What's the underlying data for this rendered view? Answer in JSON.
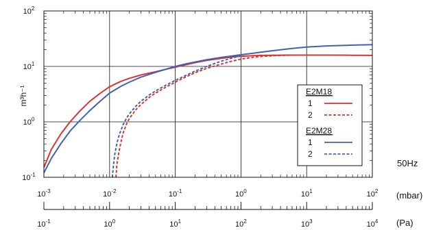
{
  "chart_data": {
    "type": "line",
    "ylabel": "m³h⁻¹",
    "y_scale": "log",
    "ylim": [
      0.1,
      100
    ],
    "y_ticks": [
      {
        "value": 0.1,
        "base": "10",
        "exp": "-1"
      },
      {
        "value": 1,
        "base": "10",
        "exp": "0"
      },
      {
        "value": 10,
        "base": "10",
        "exp": "1"
      },
      {
        "value": 100,
        "base": "10",
        "exp": "2"
      }
    ],
    "x_scale": "log",
    "xlim": [
      0.001,
      100
    ],
    "x_unit": "(mbar)",
    "x_ticks": [
      {
        "value": 0.001,
        "base": "10",
        "exp": "-3"
      },
      {
        "value": 0.01,
        "base": "10",
        "exp": "-2"
      },
      {
        "value": 0.1,
        "base": "10",
        "exp": "-1"
      },
      {
        "value": 1,
        "base": "10",
        "exp": "0"
      },
      {
        "value": 10,
        "base": "10",
        "exp": "1"
      },
      {
        "value": 100,
        "base": "10",
        "exp": "2"
      }
    ],
    "secondary_x_unit": "(Pa)",
    "secondary_x_ticks": [
      {
        "value": 0.1,
        "base": "10",
        "exp": "-1"
      },
      {
        "value": 1,
        "base": "10",
        "exp": "0"
      },
      {
        "value": 10,
        "base": "10",
        "exp": "1"
      },
      {
        "value": 100,
        "base": "10",
        "exp": "2"
      },
      {
        "value": 1000,
        "base": "10",
        "exp": "3"
      },
      {
        "value": 10000,
        "base": "10",
        "exp": "4"
      }
    ],
    "frequency_label": "50Hz",
    "grid": true,
    "legend": {
      "placement": "right",
      "groups": [
        {
          "title": "E2M18",
          "entries": [
            {
              "label": "1",
              "series": 0
            },
            {
              "label": "2",
              "series": 1
            }
          ]
        },
        {
          "title": "E2M28",
          "entries": [
            {
              "label": "1",
              "series": 2
            },
            {
              "label": "2",
              "series": 3
            }
          ]
        }
      ]
    },
    "series": [
      {
        "color": "#e03030",
        "dash": "solid",
        "x": [
          0.001,
          0.0013,
          0.0018,
          0.0025,
          0.0035,
          0.005,
          0.007,
          0.01,
          0.015,
          0.02,
          0.03,
          0.05,
          0.07,
          0.1,
          0.15,
          0.2,
          0.3,
          0.5,
          0.7,
          1,
          1.5,
          2,
          3,
          5,
          7,
          10,
          20,
          50,
          100
        ],
        "y": [
          0.15,
          0.32,
          0.6,
          1.0,
          1.55,
          2.35,
          3.2,
          4.3,
          5.4,
          6.1,
          7.0,
          8.0,
          8.8,
          9.7,
          10.8,
          11.7,
          12.8,
          14.0,
          14.7,
          15.2,
          15.6,
          15.8,
          15.9,
          16.0,
          16.0,
          16.0,
          16.0,
          15.9,
          15.8
        ]
      },
      {
        "color": "#e03030",
        "dash": "dashed",
        "x": [
          0.0125,
          0.013,
          0.014,
          0.015,
          0.016,
          0.018,
          0.02,
          0.025,
          0.03,
          0.04,
          0.05,
          0.07,
          0.1,
          0.15,
          0.2,
          0.3,
          0.5,
          0.7,
          1,
          1.5,
          2,
          3,
          5,
          7,
          10
        ],
        "y": [
          0.1,
          0.18,
          0.3,
          0.45,
          0.62,
          0.9,
          1.15,
          1.65,
          2.05,
          2.75,
          3.3,
          4.15,
          5.2,
          6.6,
          7.7,
          9.2,
          11.0,
          12.3,
          13.5,
          14.6,
          15.1,
          15.6,
          15.9,
          16.0,
          16.0
        ]
      },
      {
        "color": "#4060b0",
        "dash": "solid",
        "x": [
          0.001,
          0.0013,
          0.0018,
          0.0025,
          0.0035,
          0.005,
          0.007,
          0.01,
          0.015,
          0.02,
          0.03,
          0.05,
          0.07,
          0.1,
          0.15,
          0.2,
          0.3,
          0.5,
          0.7,
          1,
          1.5,
          2,
          3,
          5,
          7,
          10,
          20,
          50,
          100
        ],
        "y": [
          0.12,
          0.22,
          0.4,
          0.68,
          1.05,
          1.6,
          2.3,
          3.3,
          4.4,
          5.2,
          6.4,
          7.8,
          8.8,
          10.0,
          11.2,
          12.0,
          13.2,
          14.5,
          15.3,
          16.2,
          17.2,
          18.0,
          19.2,
          20.6,
          21.5,
          22.3,
          23.4,
          24.2,
          24.6
        ]
      },
      {
        "color": "#4060b0",
        "dash": "dashed",
        "x": [
          0.011,
          0.0115,
          0.012,
          0.013,
          0.014,
          0.016,
          0.018,
          0.02,
          0.025,
          0.03,
          0.04,
          0.05,
          0.07,
          0.1,
          0.15,
          0.2,
          0.3,
          0.5,
          0.7,
          1
        ],
        "y": [
          0.1,
          0.17,
          0.26,
          0.42,
          0.58,
          0.88,
          1.15,
          1.4,
          1.9,
          2.35,
          3.05,
          3.6,
          4.5,
          5.6,
          7.0,
          8.2,
          10.0,
          12.4,
          14.0,
          15.6
        ]
      }
    ]
  }
}
